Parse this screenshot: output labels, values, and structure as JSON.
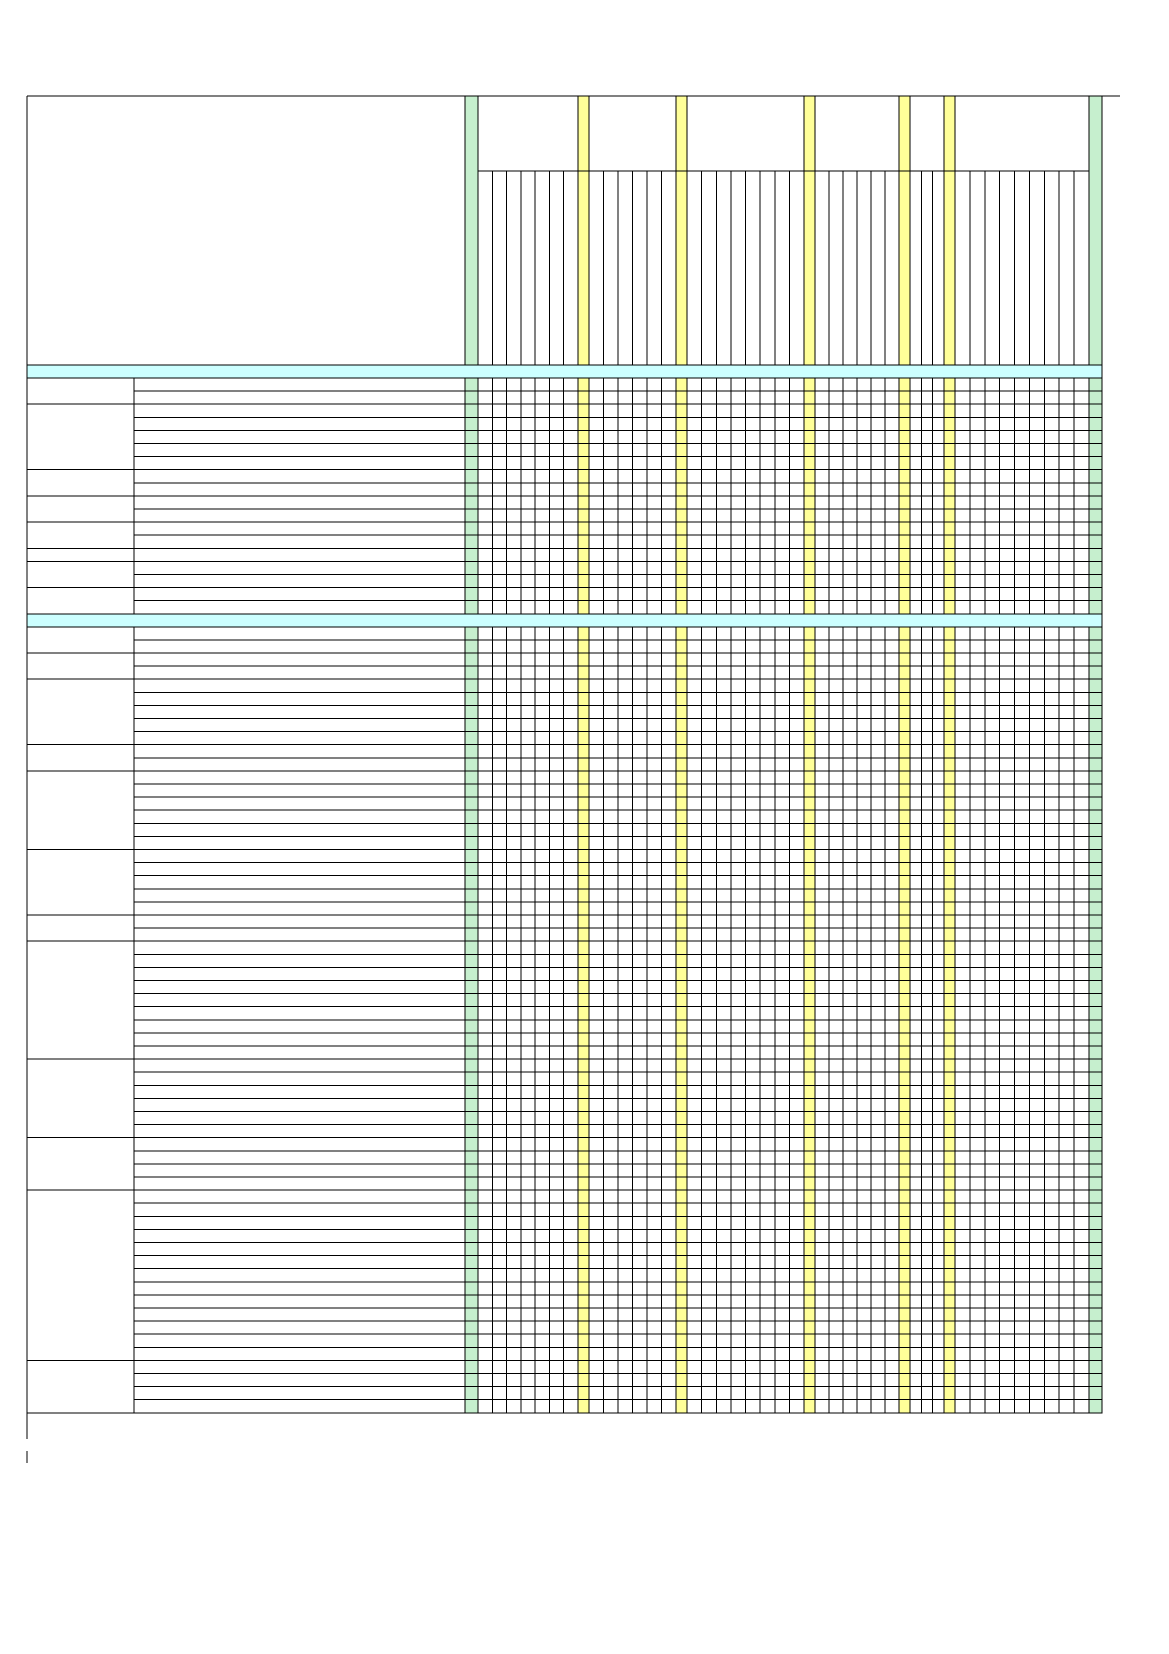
{
  "document": {
    "type": "blank grid form",
    "text": []
  },
  "colors": {
    "green_band": "#c6efce",
    "yellow_band": "#ffff99",
    "section_band": "#ccffff",
    "line": "#000000",
    "background": "#ffffff"
  },
  "sections": [
    {
      "rows": [
        {
          "group_rows": 2
        },
        {
          "group_rows": 5
        },
        {
          "group_rows": 2
        },
        {
          "group_rows": 2
        },
        {
          "group_rows": 2
        },
        {
          "group_rows": 1
        },
        {
          "group_rows": 2
        },
        {
          "group_rows": 2
        }
      ]
    },
    {
      "rows": [
        {
          "group_rows": 2
        },
        {
          "group_rows": 2
        },
        {
          "group_rows": 5
        },
        {
          "group_rows": 2
        },
        {
          "group_rows": 6
        },
        {
          "group_rows": 5
        },
        {
          "group_rows": 2
        },
        {
          "group_rows": 9
        },
        {
          "group_rows": 6
        },
        {
          "group_rows": 4
        },
        {
          "group_rows": 13
        },
        {
          "group_rows": 4
        }
      ]
    }
  ],
  "column_groups": [
    {
      "band": "green",
      "cells": 6
    },
    {
      "band": "yellow",
      "cells": 5
    },
    {
      "band": "yellow",
      "cells": 7
    },
    {
      "band": "yellow",
      "cells": 5
    },
    {
      "band": "yellow",
      "cells": 2
    },
    {
      "band": "yellow",
      "cells": 8
    },
    {
      "band": "green",
      "cells": 0
    }
  ]
}
